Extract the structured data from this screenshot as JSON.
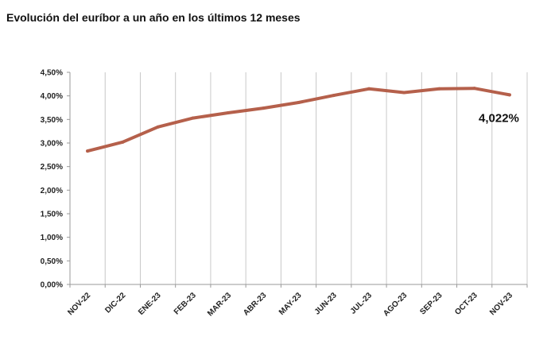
{
  "page": {
    "title": "Evolución del euríbor a un año en los últimos 12 meses"
  },
  "chart_data": {
    "type": "line",
    "title": "",
    "xlabel": "",
    "ylabel": "",
    "categories": [
      "NOV-22",
      "DIC-22",
      "ENE-23",
      "FEB-23",
      "MAR-23",
      "ABR-23",
      "MAY-23",
      "JUN-23",
      "JUL-23",
      "AGO-23",
      "SEP-23",
      "OCT-23",
      "NOV-23"
    ],
    "series": [
      {
        "values": [
          2.83,
          3.02,
          3.34,
          3.53,
          3.64,
          3.74,
          3.86,
          4.01,
          4.15,
          4.07,
          4.15,
          4.16,
          4.022
        ]
      }
    ],
    "ylim": [
      0,
      4.5
    ],
    "yticks": [
      0,
      0.5,
      1,
      1.5,
      2,
      2.5,
      3,
      3.5,
      4,
      4.5
    ],
    "ytick_labels": [
      "0,00%",
      "0,50%",
      "1,00%",
      "1,50%",
      "2,00%",
      "2,50%",
      "3,00%",
      "3,50%",
      "4,00%",
      "4,50%"
    ],
    "grid": "vertical",
    "line_color": "#b5604b",
    "annotation": {
      "text": "4,022%",
      "category": "NOV-23"
    }
  }
}
